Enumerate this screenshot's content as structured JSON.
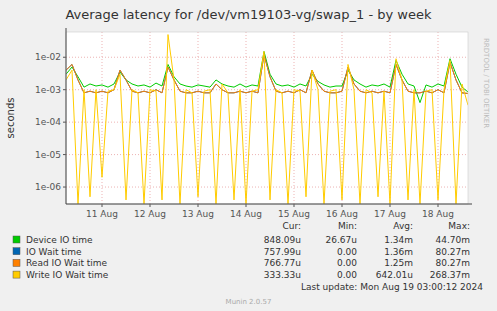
{
  "chart_data": {
    "type": "line",
    "title": "Average latency for /dev/vm19103-vg/swap_1 - by week",
    "y_label": "seconds",
    "log": "y",
    "grid": true,
    "legend": "bottom",
    "x": [
      10.75,
      10.875,
      11.0,
      11.125,
      11.25,
      11.375,
      11.5,
      11.625,
      11.75,
      11.875,
      12.0,
      12.125,
      12.25,
      12.375,
      12.5,
      12.625,
      12.75,
      12.875,
      13.0,
      13.125,
      13.25,
      13.375,
      13.5,
      13.625,
      13.75,
      13.875,
      14.0,
      14.125,
      14.25,
      14.375,
      14.5,
      14.625,
      14.75,
      14.875,
      15.0,
      15.125,
      15.25,
      15.375,
      15.5,
      15.625,
      15.75,
      15.875,
      16.0,
      16.125,
      16.25,
      16.375,
      16.5,
      16.625,
      16.75,
      16.875,
      17.0,
      17.125,
      17.25,
      17.375,
      17.5,
      17.625,
      17.75,
      17.875,
      18.0,
      18.125,
      18.25,
      18.375,
      18.5,
      18.625,
      18.75,
      18.875,
      19.0,
      19.125
    ],
    "xlim": [
      10.75,
      19.125
    ],
    "xticks": [
      {
        "value": 11.5,
        "label": "11 Aug"
      },
      {
        "value": 12.5,
        "label": "12 Aug"
      },
      {
        "value": 13.5,
        "label": "13 Aug"
      },
      {
        "value": 14.5,
        "label": "14 Aug"
      },
      {
        "value": 15.5,
        "label": "15 Aug"
      },
      {
        "value": 16.5,
        "label": "16 Aug"
      },
      {
        "value": 17.5,
        "label": "17 Aug"
      },
      {
        "value": 18.5,
        "label": "18 Aug"
      }
    ],
    "ylim": [
      3e-07,
      0.06
    ],
    "yticks": [
      {
        "value": 1e-06,
        "label": "1e-06"
      },
      {
        "value": 1e-05,
        "label": "1e-05"
      },
      {
        "value": 0.0001,
        "label": "1e-04"
      },
      {
        "value": 0.001,
        "label": "1e-03"
      },
      {
        "value": 0.01,
        "label": "1e-02"
      }
    ],
    "series": [
      {
        "name": "Device IO time",
        "color": "#00cc00",
        "values": [
          0.003,
          0.005,
          0.0025,
          0.0012,
          0.0015,
          0.0013,
          0.0014,
          0.0012,
          0.0015,
          0.0035,
          0.002,
          0.0015,
          0.0013,
          0.0014,
          0.0012,
          0.0016,
          0.0013,
          0.006,
          0.0025,
          0.0015,
          0.0013,
          0.0012,
          0.0014,
          0.0013,
          0.0012,
          0.002,
          0.0015,
          0.0013,
          0.0012,
          0.0015,
          0.0012,
          0.0014,
          0.0013,
          0.015,
          0.003,
          0.0015,
          0.0013,
          0.0014,
          0.0012,
          0.0015,
          0.0013,
          0.003,
          0.0018,
          0.0014,
          0.0012,
          0.0013,
          0.0013,
          0.004,
          0.002,
          0.0015,
          0.0012,
          0.0014,
          0.0013,
          0.0015,
          0.0012,
          0.008,
          0.003,
          0.0015,
          0.0013,
          0.0004,
          0.0014,
          0.0012,
          0.0015,
          0.0013,
          0.009,
          0.003,
          0.0012,
          0.00085
        ]
      },
      {
        "name": "IO Wait time",
        "color": "#0066b3",
        "values": [
          0.004,
          0.006,
          0.002,
          0.0008,
          0.0009,
          0.0008,
          0.0009,
          0.0008,
          0.001,
          0.004,
          0.002,
          0.0009,
          0.0008,
          0.0009,
          0.0008,
          0.001,
          0.0008,
          0.005,
          0.002,
          0.0009,
          0.0008,
          0.0008,
          0.0009,
          0.0008,
          0.0008,
          0.0015,
          0.001,
          0.0008,
          0.0008,
          0.0009,
          0.0008,
          0.0009,
          0.0008,
          0.012,
          0.0025,
          0.0009,
          0.0008,
          0.0009,
          0.0008,
          0.001,
          0.0008,
          0.004,
          0.0015,
          0.0009,
          0.0008,
          0.0008,
          0.0009,
          0.005,
          0.0015,
          0.0009,
          0.0008,
          0.0009,
          0.0008,
          0.0009,
          0.0008,
          0.006,
          0.002,
          0.0009,
          0.0008,
          0.0008,
          0.0009,
          0.0008,
          0.001,
          0.0008,
          0.007,
          0.002,
          0.0008,
          0.000758
        ]
      },
      {
        "name": "Read IO Wait time",
        "color": "#ff8000",
        "values": [
          0.004,
          0.006,
          0.002,
          0.0008,
          0.0009,
          0.0008,
          0.0009,
          0.0008,
          0.001,
          0.004,
          0.002,
          0.0009,
          0.0008,
          0.0009,
          0.0008,
          0.001,
          0.0008,
          0.005,
          0.002,
          0.0009,
          0.0008,
          0.0008,
          0.0009,
          0.0008,
          0.0008,
          0.0015,
          0.001,
          0.0008,
          0.0008,
          0.0009,
          0.0008,
          0.0009,
          0.0008,
          0.012,
          0.0025,
          0.0009,
          0.0008,
          0.0009,
          0.0008,
          0.001,
          0.0008,
          0.004,
          0.0015,
          0.0009,
          0.0008,
          0.0008,
          0.0009,
          0.005,
          0.0015,
          0.0009,
          0.0008,
          0.0009,
          0.0008,
          0.0009,
          0.0008,
          0.006,
          0.002,
          0.0009,
          0.0008,
          0.0008,
          0.0009,
          0.0008,
          0.001,
          0.0008,
          0.007,
          0.002,
          0.0008,
          0.00077
        ]
      },
      {
        "name": "Write IO Wait time",
        "color": "#ffcc00",
        "values": [
          0.002,
          0.004,
          3e-07,
          0.001,
          5e-07,
          0.001,
          2e-06,
          0.0009,
          0.001,
          0.003,
          4e-07,
          0.001,
          0.0008,
          3e-07,
          0.001,
          0.0009,
          4e-07,
          0.05,
          0.002,
          3e-07,
          0.001,
          0.0008,
          5e-07,
          0.0009,
          0.001,
          3e-07,
          0.0015,
          0.0008,
          4e-07,
          0.001,
          3e-07,
          0.0009,
          0.001,
          0.015,
          4e-07,
          0.001,
          0.0008,
          3e-07,
          0.001,
          0.0009,
          5e-07,
          0.004,
          0.001,
          3e-07,
          0.0009,
          0.001,
          4e-07,
          0.006,
          0.001,
          3e-07,
          0.001,
          0.0008,
          5e-07,
          0.0009,
          3e-07,
          0.009,
          0.002,
          4e-07,
          0.001,
          3e-07,
          0.0009,
          0.001,
          4e-07,
          0.001,
          0.008,
          3e-07,
          0.0015,
          0.000333
        ]
      }
    ],
    "legend_table": {
      "columns": [
        "Cur:",
        "Min:",
        "Avg:",
        "Max:"
      ],
      "rows": [
        [
          "848.09u",
          "26.67u",
          "1.34m",
          "44.70m"
        ],
        [
          "757.99u",
          "0.00",
          "1.36m",
          "80.27m"
        ],
        [
          "766.77u",
          "0.00",
          "1.25m",
          "80.27m"
        ],
        [
          "333.33u",
          "0.00",
          "642.01u",
          "268.37m"
        ]
      ]
    },
    "footer": "Last update: Mon Aug 19 03:00:12 2024",
    "version": "Munin 2.0.57",
    "watermark": "RRDTOOL / TOBI OETIKER"
  }
}
